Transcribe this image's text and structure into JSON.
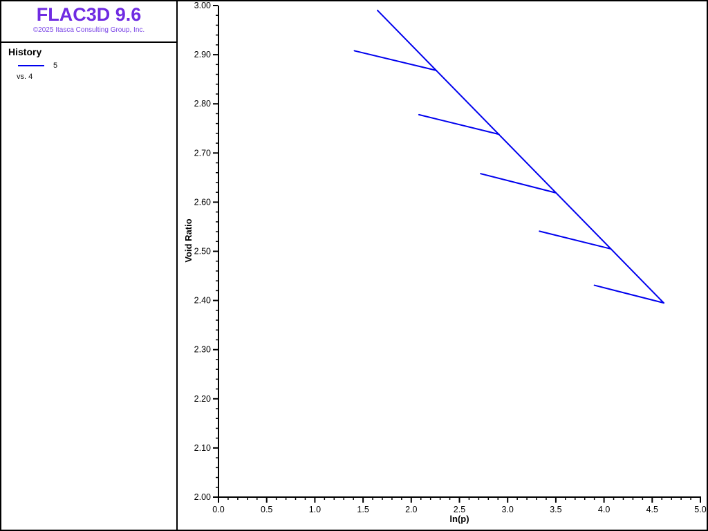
{
  "app": {
    "title": "FLAC3D 9.6",
    "copyright": "©2025 Itasca Consulting Group, Inc.",
    "title_color": "#6F2BE2",
    "copyright_color": "#7A45E6"
  },
  "legend": {
    "heading": "History",
    "series_label": "5",
    "vs_label": "vs. 4",
    "line_color": "#0000EE"
  },
  "chart_data": {
    "type": "line",
    "title": "",
    "xlabel": "ln(p)",
    "ylabel": "Void Ratio",
    "x_range": [
      0.0,
      5.0
    ],
    "y_range": [
      2.0,
      3.0
    ],
    "x_major_step": 0.5,
    "x_minor_step": 0.1,
    "y_major_step": 0.1,
    "y_minor_step": 0.02,
    "x_tick_labels": [
      "0.0",
      "0.5",
      "1.0",
      "1.5",
      "2.0",
      "2.5",
      "3.0",
      "3.5",
      "4.0",
      "4.5",
      "5.0"
    ],
    "y_tick_labels": [
      "2.00",
      "2.10",
      "2.20",
      "2.30",
      "2.40",
      "2.50",
      "2.60",
      "2.70",
      "2.80",
      "2.90",
      "3.00"
    ],
    "grid": false,
    "legend_position": "sidebar-top-left",
    "axis_color": "#000000",
    "line_color": "#0000EE",
    "series": [
      {
        "name": "History 5 vs. 4",
        "description": "virgin consolidation line with five unload-reload swelling branches",
        "segments": [
          {
            "x1": 1.65,
            "y1": 2.99,
            "x2": 4.62,
            "y2": 2.395
          },
          {
            "x1": 1.41,
            "y1": 2.908,
            "x2": 2.26,
            "y2": 2.868
          },
          {
            "x1": 2.08,
            "y1": 2.778,
            "x2": 2.91,
            "y2": 2.738
          },
          {
            "x1": 2.72,
            "y1": 2.658,
            "x2": 3.5,
            "y2": 2.619
          },
          {
            "x1": 3.33,
            "y1": 2.541,
            "x2": 4.07,
            "y2": 2.505
          },
          {
            "x1": 3.9,
            "y1": 2.431,
            "x2": 4.62,
            "y2": 2.395
          }
        ]
      }
    ]
  }
}
